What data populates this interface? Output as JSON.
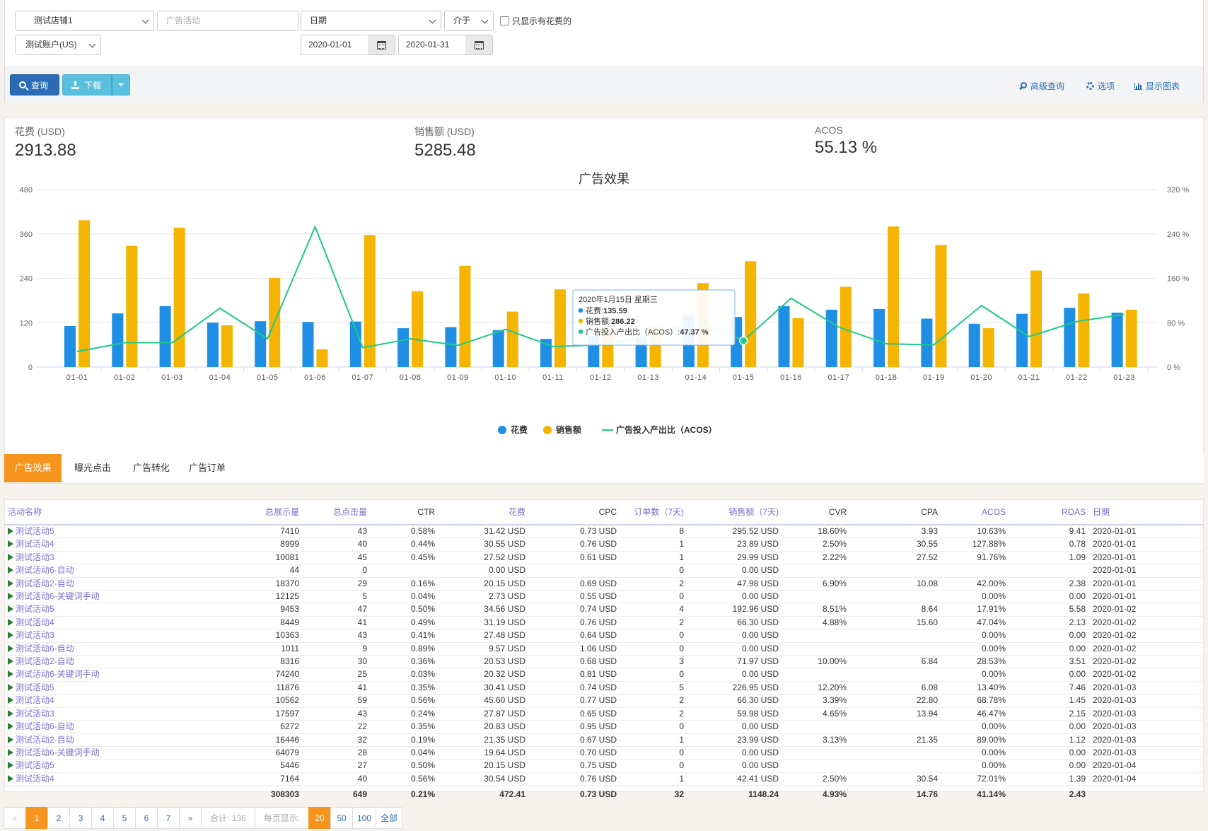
{
  "filters": {
    "shop": "测试店铺1",
    "account": "测试账户(US)",
    "campaign_placeholder": "广告活动",
    "date_field": "日期",
    "operator": "介于",
    "date_from": "2020-01-01",
    "date_to": "2020-01-31",
    "only_spend_label": "只显示有花费的",
    "only_spend_checked": false
  },
  "toolbar": {
    "query_label": "查询",
    "download_label": "下载",
    "advanced_label": "高级查询",
    "options_label": "选项",
    "show_chart_label": "显示图表"
  },
  "summary": {
    "spend_label": "花费 (USD)",
    "spend_value": "2913.88",
    "sales_label": "销售额 (USD)",
    "sales_value": "5285.48",
    "acos_label": "ACOS",
    "acos_value": "55.13 %"
  },
  "chart_data": {
    "type": "bar",
    "title": "广告效果",
    "categories": [
      "01-01",
      "01-02",
      "01-03",
      "01-04",
      "01-05",
      "01-06",
      "01-07",
      "01-08",
      "01-09",
      "01-10",
      "01-11",
      "01-12",
      "01-13",
      "01-14",
      "01-15",
      "01-16",
      "01-17",
      "01-18",
      "01-19",
      "01-20",
      "01-21",
      "01-22",
      "01-23"
    ],
    "y_left": {
      "ticks": [
        "0",
        "120",
        "240",
        "360",
        "480"
      ],
      "range": [
        0,
        480
      ]
    },
    "y_right": {
      "ticks": [
        "0 %",
        "80 %",
        "160 %",
        "240 %",
        "320 %"
      ],
      "range": [
        0,
        320
      ]
    },
    "series": [
      {
        "name": "花费",
        "type": "bar",
        "axis": "left",
        "color": "#1f8fe5",
        "values": [
          111,
          145,
          165,
          120,
          124,
          122,
          123,
          105,
          108,
          100,
          76,
          84,
          83,
          140,
          135.59,
          165,
          155,
          157,
          131,
          117,
          144,
          160,
          147
        ]
      },
      {
        "name": "销售额",
        "type": "bar",
        "axis": "left",
        "color": "#f5b400",
        "values": [
          397,
          328,
          377,
          113,
          241,
          48,
          357,
          205,
          274,
          150,
          210,
          110,
          110,
          227,
          286.22,
          132,
          217,
          380,
          330,
          105,
          261,
          199,
          155
        ]
      },
      {
        "name": "广告投入产出比（ACOS）",
        "type": "line",
        "axis": "right",
        "color": "#1dca8a",
        "values": [
          28,
          44,
          44,
          106,
          51,
          253,
          35,
          51,
          39,
          68,
          37,
          40,
          55,
          85,
          47.37,
          124,
          72,
          42,
          40,
          111,
          55,
          82,
          95
        ]
      }
    ],
    "legend": "bottom-center",
    "grid": true,
    "tooltip": {
      "date": "2020年1月15日 星期三",
      "spend_label": "花费: ",
      "spend_value": "135.59",
      "sales_label": "销售额: ",
      "sales_value": "286.22",
      "acos_label": "广告投入产出比（ACOS）: ",
      "acos_value": "47.37 %"
    }
  },
  "tabs": [
    "广告效果",
    "曝光点击",
    "广告转化",
    "广告订单"
  ],
  "table": {
    "headers": [
      "活动名称",
      "总展示量",
      "总点击量",
      "CTR",
      "花费",
      "CPC",
      "订单数（7天)",
      "销售额（7天)",
      "CVR",
      "CPA",
      "ACOS",
      "ROAS",
      "日期"
    ],
    "rows": [
      [
        "测试活动5",
        "7410",
        "43",
        "0.58%",
        "31.42 USD",
        "0.73 USD",
        "8",
        "295.52 USD",
        "18.60%",
        "3.93",
        "10.63%",
        "9.41",
        "2020-01-01"
      ],
      [
        "测试活动4",
        "8999",
        "40",
        "0.44%",
        "30.55 USD",
        "0.76 USD",
        "1",
        "23.89 USD",
        "2.50%",
        "30.55",
        "127.88%",
        "0.78",
        "2020-01-01"
      ],
      [
        "测试活动3",
        "10081",
        "45",
        "0.45%",
        "27.52 USD",
        "0.61 USD",
        "1",
        "29.99 USD",
        "2.22%",
        "27.52",
        "91.76%",
        "1.09",
        "2020-01-01"
      ],
      [
        "测试活动6-自动",
        "44",
        "0",
        "",
        "0.00 USD",
        "",
        "0",
        "0.00 USD",
        "",
        "",
        "",
        "",
        "2020-01-01"
      ],
      [
        "测试活动2-自动",
        "18370",
        "29",
        "0.16%",
        "20.15 USD",
        "0.69 USD",
        "2",
        "47.98 USD",
        "6.90%",
        "10.08",
        "42.00%",
        "2.38",
        "2020-01-01"
      ],
      [
        "测试活动6-关键词手动",
        "12125",
        "5",
        "0.04%",
        "2.73 USD",
        "0.55 USD",
        "0",
        "0.00 USD",
        "",
        "",
        "0.00%",
        "0.00",
        "2020-01-01"
      ],
      [
        "测试活动5",
        "9453",
        "47",
        "0.50%",
        "34.56 USD",
        "0.74 USD",
        "4",
        "192.96 USD",
        "8.51%",
        "8.64",
        "17.91%",
        "5.58",
        "2020-01-02"
      ],
      [
        "测试活动4",
        "8449",
        "41",
        "0.49%",
        "31.19 USD",
        "0.76 USD",
        "2",
        "66.30 USD",
        "4.88%",
        "15.60",
        "47.04%",
        "2.13",
        "2020-01-02"
      ],
      [
        "测试活动3",
        "10363",
        "43",
        "0.41%",
        "27.48 USD",
        "0.64 USD",
        "0",
        "0.00 USD",
        "",
        "",
        "0.00%",
        "0.00",
        "2020-01-02"
      ],
      [
        "测试活动6-自动",
        "1011",
        "9",
        "0.89%",
        "9.57 USD",
        "1.06 USD",
        "0",
        "0.00 USD",
        "",
        "",
        "0.00%",
        "0.00",
        "2020-01-02"
      ],
      [
        "测试活动2-自动",
        "8316",
        "30",
        "0.36%",
        "20.53 USD",
        "0.68 USD",
        "3",
        "71.97 USD",
        "10.00%",
        "6.84",
        "28.53%",
        "3.51",
        "2020-01-02"
      ],
      [
        "测试活动6-关键词手动",
        "74240",
        "25",
        "0.03%",
        "20.32 USD",
        "0.81 USD",
        "0",
        "0.00 USD",
        "",
        "",
        "0.00%",
        "0.00",
        "2020-01-02"
      ],
      [
        "测试活动5",
        "11876",
        "41",
        "0.35%",
        "30.41 USD",
        "0.74 USD",
        "5",
        "226.95 USD",
        "12.20%",
        "6.08",
        "13.40%",
        "7.46",
        "2020-01-03"
      ],
      [
        "测试活动4",
        "10562",
        "59",
        "0.56%",
        "45.60 USD",
        "0.77 USD",
        "2",
        "66.30 USD",
        "3.39%",
        "22.80",
        "68.78%",
        "1.45",
        "2020-01-03"
      ],
      [
        "测试活动3",
        "17597",
        "43",
        "0.24%",
        "27.87 USD",
        "0.65 USD",
        "2",
        "59.98 USD",
        "4.65%",
        "13.94",
        "46.47%",
        "2.15",
        "2020-01-03"
      ],
      [
        "测试活动6-自动",
        "6272",
        "22",
        "0.35%",
        "20.83 USD",
        "0.95 USD",
        "0",
        "0.00 USD",
        "",
        "",
        "0.00%",
        "0.00",
        "2020-01-03"
      ],
      [
        "测试活动2-自动",
        "16446",
        "32",
        "0.19%",
        "21.35 USD",
        "0.67 USD",
        "1",
        "23.99 USD",
        "3.13%",
        "21.35",
        "89.00%",
        "1.12",
        "2020-01-03"
      ],
      [
        "测试活动6-关键词手动",
        "64079",
        "28",
        "0.04%",
        "19.64 USD",
        "0.70 USD",
        "0",
        "0.00 USD",
        "",
        "",
        "0.00%",
        "0.00",
        "2020-01-03"
      ],
      [
        "测试活动5",
        "5446",
        "27",
        "0.50%",
        "20.15 USD",
        "0.75 USD",
        "0",
        "0.00 USD",
        "",
        "",
        "0.00%",
        "0.00",
        "2020-01-04"
      ],
      [
        "测试活动4",
        "7164",
        "40",
        "0.56%",
        "30.54 USD",
        "0.76 USD",
        "1",
        "42.41 USD",
        "2.50%",
        "30.54",
        "72.01%",
        "1.39",
        "2020-01-04"
      ]
    ],
    "totals": [
      "",
      "308303",
      "649",
      "0.21%",
      "472.41",
      "0.73 USD",
      "32",
      "1148.24",
      "4.93%",
      "14.76",
      "41.14%",
      "2.43",
      ""
    ]
  },
  "pagination": {
    "prev": "«",
    "next": "»",
    "pages": [
      "1",
      "2",
      "3",
      "4",
      "5",
      "6",
      "7"
    ],
    "current": "1",
    "total_label": "合计: 136",
    "per_page_label": "每页显示:",
    "per_page_options": [
      "20",
      "50",
      "100",
      "全部"
    ],
    "per_page_selected": "20"
  }
}
